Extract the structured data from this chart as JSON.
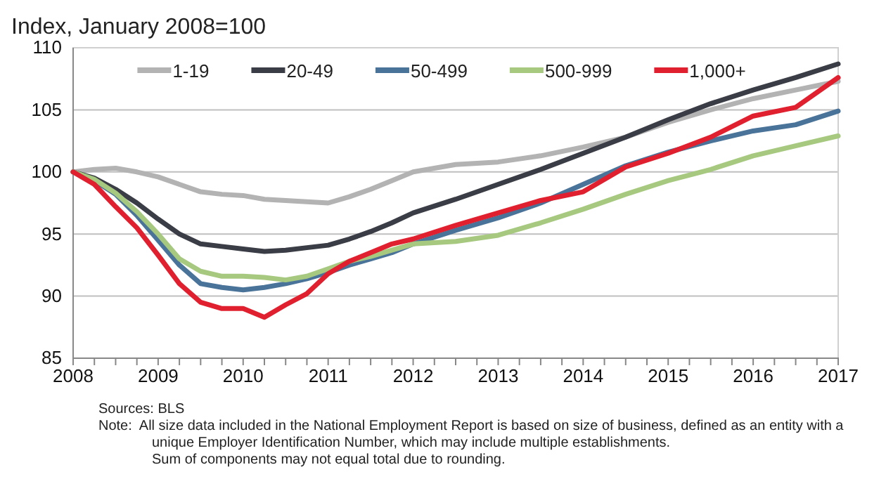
{
  "chart_data": {
    "type": "line",
    "title": "Index, January 2008=100",
    "x": [
      2008,
      2008.25,
      2008.5,
      2008.75,
      2009,
      2009.25,
      2009.5,
      2009.75,
      2010,
      2010.25,
      2010.5,
      2010.75,
      2011,
      2011.25,
      2011.5,
      2011.75,
      2012,
      2012.5,
      2013,
      2013.5,
      2014,
      2014.5,
      2015,
      2015.5,
      2016,
      2016.5,
      2017
    ],
    "series": [
      {
        "name": "1-19",
        "color": "#b3b3b3",
        "values": [
          100,
          100.2,
          100.3,
          100,
          99.6,
          99,
          98.4,
          98.2,
          98.1,
          97.8,
          97.7,
          97.6,
          97.5,
          98,
          98.6,
          99.3,
          100,
          100.6,
          100.8,
          101.3,
          102,
          102.8,
          104,
          105,
          105.9,
          106.6,
          107.3
        ]
      },
      {
        "name": "20-49",
        "color": "#3a3d45",
        "values": [
          100,
          99.5,
          98.6,
          97.5,
          96.2,
          95,
          94.2,
          94,
          93.8,
          93.6,
          93.7,
          93.9,
          94.1,
          94.6,
          95.2,
          95.9,
          96.7,
          97.8,
          99,
          100.2,
          101.5,
          102.8,
          104.2,
          105.5,
          106.6,
          107.6,
          108.7
        ]
      },
      {
        "name": "50-499",
        "color": "#4a7399",
        "values": [
          100,
          99.3,
          98.2,
          96.5,
          94.5,
          92.5,
          91,
          90.7,
          90.5,
          90.7,
          91,
          91.4,
          91.9,
          92.5,
          93,
          93.5,
          94.2,
          95.3,
          96.3,
          97.5,
          99,
          100.5,
          101.6,
          102.5,
          103.3,
          103.8,
          104.9
        ]
      },
      {
        "name": "500-999",
        "color": "#a6c97f",
        "values": [
          100,
          99.4,
          98.3,
          96.8,
          95,
          93,
          92,
          91.6,
          91.6,
          91.5,
          91.3,
          91.6,
          92.2,
          92.8,
          93.2,
          93.7,
          94.2,
          94.4,
          94.9,
          95.9,
          97,
          98.2,
          99.3,
          100.2,
          101.3,
          102.1,
          102.9
        ]
      },
      {
        "name": "1,000+",
        "color": "#e0202e",
        "values": [
          100,
          99,
          97.2,
          95.5,
          93.3,
          91,
          89.5,
          89,
          89,
          88.3,
          89.3,
          90.2,
          91.8,
          92.8,
          93.5,
          94.2,
          94.6,
          95.7,
          96.7,
          97.7,
          98.4,
          100.4,
          101.5,
          102.8,
          104.5,
          105.2,
          107.6
        ]
      }
    ],
    "xlim": [
      2008,
      2017
    ],
    "xticks": [
      2008,
      {
        "value": 2008.25,
        "label": null
      },
      {
        "value": 2008.5,
        "label": null
      },
      {
        "value": 2008.75,
        "label": null
      },
      2009,
      {
        "value": 2009.25,
        "label": null
      },
      {
        "value": 2009.5,
        "label": null
      },
      {
        "value": 2009.75,
        "label": null
      },
      2010,
      {
        "value": 2010.25,
        "label": null
      },
      {
        "value": 2010.5,
        "label": null
      },
      {
        "value": 2010.75,
        "label": null
      },
      2011,
      {
        "value": 2011.25,
        "label": null
      },
      {
        "value": 2011.5,
        "label": null
      },
      {
        "value": 2011.75,
        "label": null
      },
      2012,
      {
        "value": 2012.25,
        "label": null
      },
      {
        "value": 2012.5,
        "label": null
      },
      {
        "value": 2012.75,
        "label": null
      },
      2013,
      {
        "value": 2013.25,
        "label": null
      },
      {
        "value": 2013.5,
        "label": null
      },
      {
        "value": 2013.75,
        "label": null
      },
      2014,
      {
        "value": 2014.25,
        "label": null
      },
      {
        "value": 2014.5,
        "label": null
      },
      {
        "value": 2014.75,
        "label": null
      },
      2015,
      {
        "value": 2015.25,
        "label": null
      },
      {
        "value": 2015.5,
        "label": null
      },
      {
        "value": 2015.75,
        "label": null
      },
      2016,
      {
        "value": 2016.25,
        "label": null
      },
      {
        "value": 2016.5,
        "label": null
      },
      {
        "value": 2016.75,
        "label": null
      },
      2017
    ],
    "ylim": [
      85,
      110
    ],
    "yticks": [
      85,
      90,
      95,
      100,
      105,
      110
    ],
    "grid": "y",
    "legend": "top",
    "marker": "none",
    "line_style": "solid",
    "annotations": [
      "Sources: BLS",
      "Note:  All size data included in the National Employment Report is based on size of business, defined as an entity with a",
      "unique Employer Identification Number, which may include multiple establishments.",
      "Sum of components may not equal total due to rounding."
    ]
  }
}
